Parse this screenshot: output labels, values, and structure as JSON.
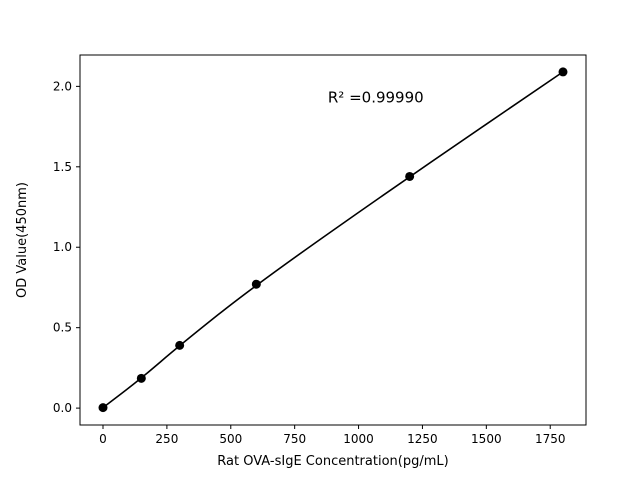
{
  "chart_data": {
    "type": "scatter",
    "title": "",
    "xlabel": "Rat OVA-sIgE Concentration(pg/mL)",
    "ylabel": "OD Value(450nm)",
    "x": [
      0,
      150,
      300,
      600,
      1200,
      1800
    ],
    "y": [
      0.003,
      0.185,
      0.39,
      0.77,
      1.44,
      2.09
    ],
    "xticks": [
      0,
      250,
      500,
      750,
      1000,
      1250,
      1500,
      1750
    ],
    "yticks": [
      0.0,
      0.5,
      1.0,
      1.5,
      2.0
    ],
    "xlim": [
      -90,
      1890
    ],
    "ylim": [
      -0.105,
      2.195
    ],
    "grid": false,
    "legend": false,
    "line_color": "#000000",
    "marker_color": "#000000",
    "annotation": {
      "text": "R² =0.99990",
      "x": 880,
      "y": 1.9
    }
  }
}
